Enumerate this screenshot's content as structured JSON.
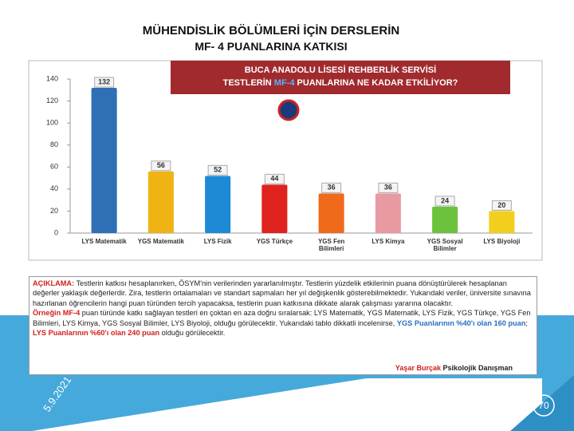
{
  "slide": {
    "title_line1": "MÜHENDİSLİK BÖLÜMLERİ İÇİN  DERSLERİN",
    "title_line2": "MF- 4 PUANLARINA KATKISI",
    "date": "5.9.2021",
    "page_number": "70"
  },
  "banner": {
    "line1": "BUCA ANADOLU LİSESİ REHBERLİK SERVİSİ",
    "line2_start": "TESTLERİN ",
    "line2_highlight": "MF-4",
    "line2_end": " PUANLARINA NE KADAR ETKİLİYOR?"
  },
  "chart_data": {
    "type": "bar",
    "categories": [
      "LYS Matematik",
      "YGS Matematik",
      "LYS Fizik",
      "YGS Türkçe",
      "YGS Fen Bilimleri",
      "LYS Kimya",
      "YGS Sosyal Bilimler",
      "LYS Biyoloji"
    ],
    "values": [
      132,
      56,
      52,
      44,
      36,
      36,
      24,
      20
    ],
    "colors": [
      "#2f6fb5",
      "#efb414",
      "#1d8ad6",
      "#e0221e",
      "#f06a1c",
      "#e89aa2",
      "#6cc23c",
      "#f2cf1e"
    ],
    "ylim": [
      0,
      140
    ],
    "yticks": [
      0,
      20,
      40,
      60,
      80,
      100,
      120,
      140
    ],
    "grid": false
  },
  "explanation": {
    "p1_label": "AÇIKLAMA:",
    "p1_text": " Testlerin katkısı hesaplanırken, ÖSYM'nin verilerinden yararlanılmıştır. Testlerin yüzdelik etkilerinin puana dönüştürülerek hesaplanan değerler yaklaşık değerlerdir. Zira, testlerin ortalamaları ve standart sapmaları her yıl değişkenlik gösterebilmektedir. Yukarıdaki veriler, üniversite sınavına hazırlanan öğrencilerin hangi puan türünden tercih yapacaksa, testlerin puan katkısına dikkate alarak çalışması yararına olacaktır.",
    "p2_label": "Örneğin MF-4",
    "p2_text": " puan türünde katkı sağlayan testleri en çoktan en aza doğru sıralarsak: LYS Matematik, YGS Matematik, LYS Fizik, YGS Türkçe, YGS Fen Bilimleri, LYS Kimya, YGS Sosyal Bilimler, LYS Biyoloji, olduğu görülecektir. Yukarıdaki tablo dikkatli incelenirse, ",
    "p2_ygs": "YGS Puanlarının %40'ı olan 160 puan",
    "p2_sep": "; ",
    "p2_lys": "LYS Puanlarının %60'ı olan 240 puan",
    "p2_end": " olduğu görülecektir.",
    "signature_name": "Yaşar Burçak",
    "signature_title": " Psikolojik Danışman"
  }
}
